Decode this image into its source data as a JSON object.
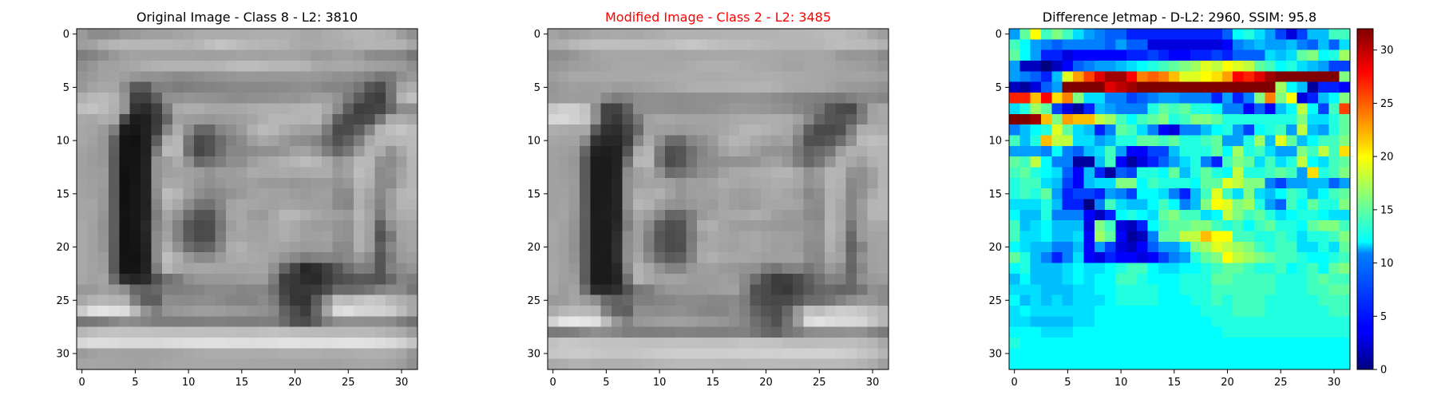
{
  "chart_data": [
    {
      "type": "heatmap",
      "title": "Original Image - Class 8 - L2: 3810",
      "title_color": "#000000",
      "colormap": "gray",
      "grid": false,
      "x_ticks": [
        "0",
        "5",
        "10",
        "15",
        "20",
        "25",
        "30"
      ],
      "y_ticks": [
        "0",
        "5",
        "10",
        "15",
        "20",
        "25",
        "30"
      ],
      "size": [
        32,
        32
      ],
      "rows": [
        "9a8d8c8f989a9fa0a0a4a7acacacabacadaeaeaeaca6a7abaeb2b5b5b1ad9d90",
        "9ea2aeb5b8b7b7b6b6b5b3b7bec4c0bab7b5b5b3aca9a9acacaeb3b5b4b4b1a6",
        "7e838d98a0a3a2a2a2a2a2a0a0a1a2a4a3a2a3a3a3a0999a9f9f9b8d8a8b8778",
        "8e96a1a1a5a8aeb1b3b3b3b3b2b4b9bcbcbab7b7b7b3a9a6a9a9a6a19f9d9a8f",
        "959ba1a39e9691928f8a8b8f9394969898979797979998958f918a83767a8f98",
        "98a3a7a68c5a577f817c7f828385888988888a8b8e908c86868275564b73a3ac",
        "b0b8bab39542415f8f91959391908d8d8f90929594989d9d93795c453e71b2bf",
        "bfc3bcb094332c407aa9adaca6a6a6a8acafb0afb2b4b5a88b5e3f4146678d8d",
        "a9a7aea8481d203a65a09c9a969a9ca0a5aeb6b6b5b2b6985e48464c78a9aca5",
        "a6a49b7f1c17213e85ac8d6767868e9bafbab7aba49e9e7a4a4c5d82b2bec4bc",
        "a6a197611311205dadb6744a536c808b9fa8a3998f8c836b51607da8b6b4b8b9",
        "a29d975d1313207abab76f47526f87878c909096a1a3967e67779bb3ab92a8b8",
        "a19c985b131422939eab8f68717e8e8e9da6aab1b5bbb6aa95a1b8b7918b9db5",
        "a09e9c5c11152392a0a3a09c929c9ba0aaa9a8aaa8aaacac9aa2bdb48a90a3b4",
        "a29f9c5c11162193a9a8a1968f969c9c9f9b999a96989b9b9298b7b08c8ba7b4",
        "a2a0995b1117228ebcb49f8e868a939aa2a4a1a19d9b9e9f8b8ab2a4889db5b8",
        "a5a5985d11182186b4a88d757286a2a8a6a3a1a4a39f9f9e8b87b19f839cb4b4",
        "a5a3955d1318237ea4926d55547ca4a79c9aa7b6b7aea6a29e9ab6a47aa0acae",
        "a8a2925d121728849d81574a4d769da8a2a1a9aea9a09c9c9491b0a25e8fa3a6",
        "a9a2945d1215258ba2815a4b4d7ba3a5a3a2a8ada7a0a0a29491b19f5377a3a5",
        "a9a2955b1214228dad906c5e6386abb1a7a5a6a39d9b9c9d8a8ab09e5e879ea5",
        "a8a19c5a1312208cbeae97898a9ba9aca9a7a094887d828581899b8a567b9b9e",
        "a8a39e591415227db6a9a3a6a6a4a5a4a5a5916343272f40566e7f7b54818c95",
        "a6a1a56c2d252c51717b8f979898999c9e9e7e3e372c2a3c4c5359575268847f",
        "9899a19a8e6761677e7e82848a8a8a858786704236383b4b6a6a6c74828a8977",
        "a8b3b6b3b07e5f5e8d8c8a8d8e8a8583848b7c4c36335a8ebebac2c8c4b8aea6",
        "cbdfe3dfdbb9947f95989b9e9e9c9898949188614c3c66a4dadfd6d3d1ccbba9",
        "76787c868e8a847c7d7c7d7e80807e7d7d7f7d6a514b5f7f8d8f8f8e8e8b7e72",
        "b6bdc1c2c2c1c1c0bfbebebfbfbfbebdbdbfc1bfbcbbbab9b8b9b9b9b5b0aa9c",
        "d7dcdcdbd9d9d9d8dadcdedfe0e0dededddedfe1e1e0e0dfe1e2e1e0ddd9d1c5",
        "9ba0a3a3a2a2a2a2a3a5a8aaacacacacacabacaeaeaeadababacaeafaeaca697",
        "a4a5a4a4a3a2a2a4a6a7a7a8a8a8a8a7a6a6a5a5a5a4a4a3a3a5a6a7a6a39d90"
      ]
    },
    {
      "type": "heatmap",
      "title": "Modified Image - Class 2 - L2: 3485",
      "title_color": "#ff0000",
      "colormap": "gray",
      "grid": false,
      "x_ticks": [
        "0",
        "5",
        "10",
        "15",
        "20",
        "25",
        "30"
      ],
      "y_ticks": [
        "0",
        "5",
        "10",
        "15",
        "20",
        "25",
        "30"
      ],
      "size": [
        32,
        32
      ],
      "rows": [
        "a39ca0a3a8a8aaa9a8abadb1b1b1b0b1b2b3b3b3b3b3b4b4b6b8bbbbb7b3a79e",
        "acafb7bcbfbfbfbebebdbcbec3c7c3bfbdbcbcbab7b5b5b5b5b6babcbbbab8b1",
        "8e8f969da3a6a6a6a6a6a6a5a5a6a7a8a8a8a9a9a8a7a5a5a6a6a4999697958a",
        "97999ea0a2a4a7a8a8a7a7a8a9acafb0b0afacaaa9a7a3a3a6a7a6a2a09e9b94",
        "9ea3a8a8a8a8a8a8a8a9aaabacacababacacadadaeadabaaa8a7a4a3a3a4a29f",
        "969c9f9d9da19c9c9fa1a4a7aaaeb0afb0b1b2b2b3b0aaa8a6a6a29c99999792",
        "999c9d9c9d897d838e8f8f8e8d8e8f8f90929393918d8883827f7b7880878a86",
        "c8d0cfc28d44425f8e90908e8d8e8f919499999896928f877f75574b4978a1a8",
        "d6d7d0c69043395378a1a6a6a3a3a2a3a5a9abacadadaba1876455525e7fa3a6",
        "aeaba8a95a322e4468a29f9e9b9ea0a2a6adb5b6b2ada9925f4a494f7cacafab",
        "a6a3a3893328273f85aa8e6c6b878e9aacb5b2a9a49ea2805150576e8fb8bebb",
        "a29f9b65211e2155aab5794f55708591a2aba79d949490786169759db0adb6b5",
        "a19d975a1c1b2271b6b8744c5673898d909292959ea2967e677694b0a89fb0b5",
        "a19e99591b1b238ba0a9916c72809092a0a8a9adaeb3b4a8919db4b3928f9fb3",
        "a2a09b5a1a1b2590a0a4a39e959f9ea3aba8a5a8aaadaca69399b5b0888e9db3",
        "a1a29a5b1a1c2590adacb0a2959ea0a1a59f9da1a8aaa59d878fb1ad8692aab6",
        "a1a3995c1a1d2590b6b19f9491989d9ba59e9b9ea6a6a6a38f8cb3a6869cb5b7",
        "a2a4975e1c1e2486a79d8666677e99a2a6a9a9aea99f9b9a8a88b3a5869ab4b5",
        "a6a2945d1c1c287fa08b5f4e527eaaafa49e9c9d9b999797928eb5a8769ba9a8",
        "a6a0925c1b1b2e8c9f80574c51799fa8a5a2a6a8a3a0a09d9190b3a3689aa3a4",
        "a49f915c1b1c308e9f7e5a4b4e7da6a7a3a1a5a8a39e9f9b8c8cb09d6283a2a4",
        "a5a0935d1c1b2f8fa688695a5f82a9b0a9a6a6a39f9fa0a18d88a8a26892a1a3",
        "a6a0975d1b1b2786b3a6928383979e9f9a9793907d75828477839a8e6587a0a3",
        "a79f9c5b1b1b2471b3a8a0a3a29c9c9c9f9c8a6d4e3c3f4b5e7183806a909a9d",
        "a59ca36e2c292f52777d8f9897989a9d9fa186514a3d394958666a646675908c",
        "999ca59c8e6a61677f7f84868b8b8b87888a7c554a484a586b6d76828f98968c",
        "abb6bab8b480645f8e8e8c8f908b8684858d8063544d6698c1bdc7cdcbc5bcb5",
        "d2e4e7e4dfbc9781979a9d9f9f9d9999958f856f6051729ddbe1dcd9d8d5c6b6",
        "7a7b7f888f8b857d7e7d7e7f82817f7e7e8081766863757d8c8e90909391857b",
        "c1c7c6c4c2c1c1c1c0bfbfc0c0c0c0bfbfc1c4c3c2c1bcbbbbbcbdbebebab4a8",
        "c6c8cacac7c5c5c5c6c8cbcccdcdcdcdcdcecfcfd0cfd1d0d1d1d1cecbc5bfb4",
        "aaadb2b2afafafafb1b3b6b8babab9b9b8b8b8b9b9b9b9b8b8b9b9b9b7b3aca0"
      ]
    },
    {
      "type": "heatmap",
      "title": "Difference Jetmap - D-L2: 2960, SSIM: 95.8",
      "title_color": "#000000",
      "colormap": "jet",
      "grid": false,
      "x_ticks": [
        "0",
        "5",
        "10",
        "15",
        "20",
        "25",
        "30"
      ],
      "y_ticks": [
        "0",
        "5",
        "10",
        "15",
        "20",
        "25",
        "30"
      ],
      "colorbar": {
        "min": 0,
        "max": 32,
        "ticks": [
          "0",
          "5",
          "10",
          "15",
          "20",
          "25",
          "30"
        ]
      },
      "size": [
        32,
        32
      ],
      "rows": [
        "090f140e100e0b09080707050505050505050505070c0d0b090603060a0a0e0e",
        "0e0c0908070808080807090707030303030303030408090a09090a08070a070b",
        "0f0c090505030404040404050506050404050506050707070b0a0b0f100c0d11",
        "090202000204070809090a0b0c0d0e0f101113121413120f0e0c0d0b0a090606",
        "090807050a13171a1d1f1f1c1819181613131415171c1b1d1f24262822272310",
        "0201030709232d28211d1e1f2523242223262725242b262520110c0a01050504",
        "1b1b161c1518100b0b08080607080909080808050905081018101403050a0c10",
        "0b0d110f060301050a090808080d0f0e0f0d0d0c08080407040a0c120c060e1a",
        "2d2e1f161017161612110e0c0e0f100d0e10100f0d0d0d0d0d0d0d100b0b0d0f",
        "080a0c0d130f0b0a05080f0e0b08040308080a0c0d09060c0d0e09120a090d0f",
        "0e0a0d1612120b0b090a0d0d0f0f0e0f0d0d0e0f09090d110a130f0a0c0e0e10",
        "090909080c08070a0b0e09040406060a0d0d0d0f0c110d0e0b0909100e120e15",
        "0f0e120c080801010a0e0401030507090b0d08050e100f0b0e0b0d120c0b0e0f",
        "0e0f0d0c0b07040a050107060d0d0c0f0a0d0f0d0c120d0d0e0f0e09150d0e10",
        "0d0e0e0b0a06040a0b0b10100c0e0d0d0d0c0f0f13121010080609090a0a0709",
        "0d0e0d0f09050606050908060c0c0b08050a0e130e0b100b0a0c0e0d0a0c0e0f",
        "0b0b0b0d0a050500080e0b0a0a0c0e0c080a10141310110d09070e0c0f0d0d10",
        "0c0a0a0d0808080402050c0d0c0b0f100e0e0b0c12100e0f0d0b0c0d0d0c0b0b",
        "0e0a0b0c0a0a0a03100e0302050c0e0f0f10100e0d0e0c0e0f0d0d0c0f10100e",
        "0e0b0b0c0a0a0b04110f040102080f0f12121614140e0e0d0d0e0d0b0d0d0e10",
        "0c0b0a0a08080a0409060302040709090b1011131211100e0d0e0e0b0b0d0b0f",
        "0f0d0a0805080b040305040403040608090d0f10141211100f0e0e0d0c0c0d0e",
        "0c0d0a0a0a0b0c0b0b0c0d0e0e0c0b0b0c0c0d0e0f0f0e0d0d0e0c0d0e0c0f10",
        "0a0c0a0a0a0b0c0b0c0c0e0e0d0c0c0c0d0d0d0f0f0e0e0e0e0d0d0d0e0f0e0e",
        "0b0b0b0a0a0a0b0b0c0c0d0d0d0d0c0c0d0d0d0e0e0e0e0e0e0d0d0d0e0e0f0f",
        "0c0a0b0a0b0a0b0b0b0c0d0d0d0d0c0c0c0d0d0e0d0e0e0e0d0d0d0d0d0e0e0e",
        "0b0c0b0b0b0b0b0b0c0c0c0c0c0c0c0c0c0c0d0d0d0e0e0e0d0d0d0d0d0d0e0e",
        "0b0b0a0a0a0a0b0b0c0c0c0c0c0c0c0c0c0c0c0d0d0d0d0d0d0d0d0d0d0d0d0d",
        "0c0c0c0b0b0b0c0c0c0c0c0c0c0c0c0c0c0c0c0c0d0d0d0d0d0d0d0d0d0d0d0d",
        "0d0c0c0c0c0c0c0c0c0c0c0c0c0c0c0c0c0c0c0c0c0c0c0c0c0c0c0c0c0c0c0c",
        "0c0c0c0c0c0c0c0c0c0c0c0c0c0c0c0c0c0c0c0c0c0c0c0c0c0c0c0c0c0c0c0c",
        "0c0c0c0c0c0c0c0c0c0c0c0c0c0c0c0c0c0c0c0c0c0c0c0c0c0c0c0c0c0c0c0c"
      ]
    }
  ]
}
